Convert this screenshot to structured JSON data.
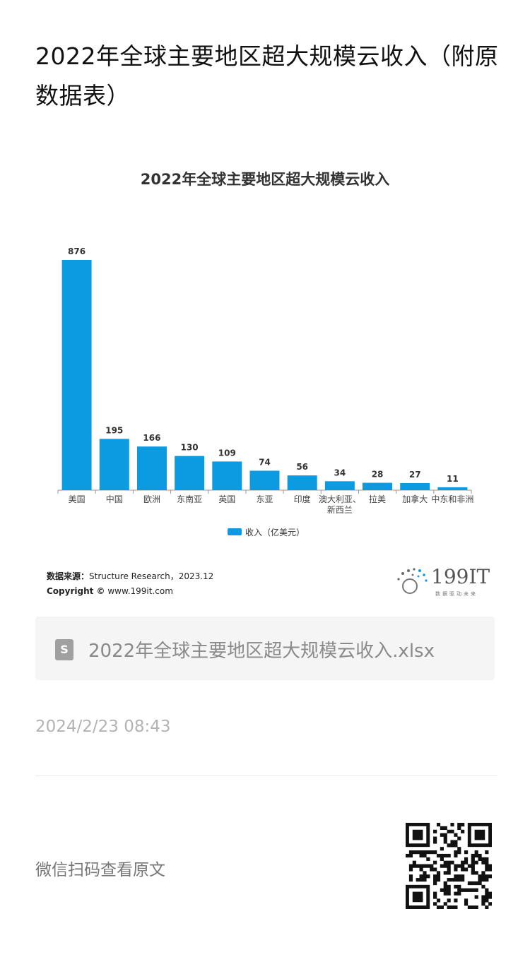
{
  "page": {
    "title": "2022年全球主要地区超大规模云收入（附原数据表）",
    "source_label": "数据来源：",
    "source_text": "Structure Research，2023.12",
    "copyright_label": "Copyright ©",
    "copyright_text": " www.199it.com",
    "logo_text": "199IT",
    "logo_sub": "数据驱动未来",
    "file_name": "2022年全球主要地区超大规模云收入.xlsx",
    "file_icon": "S",
    "timestamp": "2024/2/23 08:43",
    "qr_label": "微信扫码查看原文"
  },
  "colors": {
    "bar": "#0c9be0",
    "axis": "#999999"
  },
  "chart_data": {
    "type": "bar",
    "title": "2022年全球主要地区超大规模云收入",
    "categories": [
      "美国",
      "中国",
      "欧洲",
      "东南亚",
      "英国",
      "东亚",
      "印度",
      "澳大利亚、新西兰",
      "拉美",
      "加拿大",
      "中东和非洲"
    ],
    "category_lines": [
      [
        "美国"
      ],
      [
        "中国"
      ],
      [
        "欧洲"
      ],
      [
        "东南亚"
      ],
      [
        "英国"
      ],
      [
        "东亚"
      ],
      [
        "印度"
      ],
      [
        "澳大利亚、",
        "新西兰"
      ],
      [
        "拉美"
      ],
      [
        "加拿大"
      ],
      [
        "中东和非洲"
      ]
    ],
    "series": [
      {
        "name": "收入（亿美元）",
        "values": [
          876,
          195,
          166,
          130,
          109,
          74,
          56,
          34,
          28,
          27,
          11
        ]
      }
    ],
    "ylim": [
      0,
      876
    ],
    "grid": false,
    "legend": "bottom"
  }
}
